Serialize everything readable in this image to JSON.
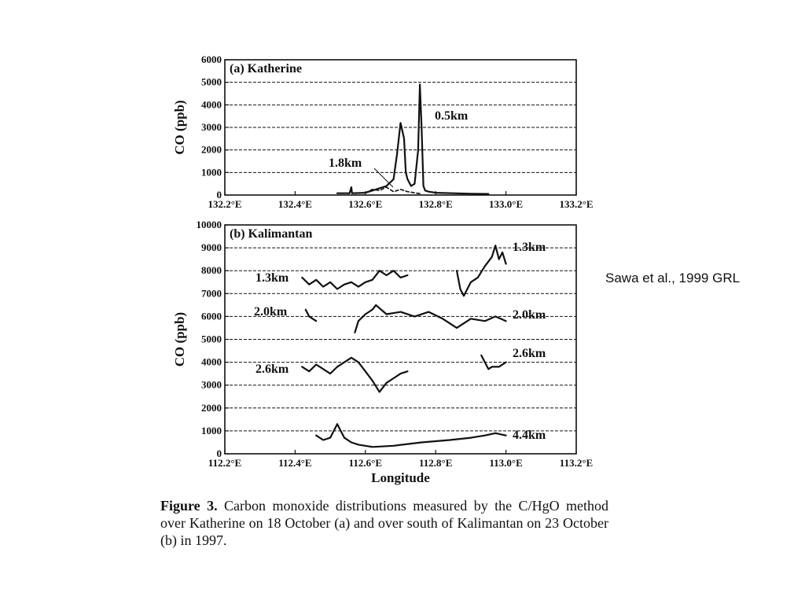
{
  "citation": "Sawa et al., 1999 GRL",
  "caption": {
    "lead": "Figure 3.",
    "text": "Carbon monoxide distributions measured by the C/HgO method over Katherine on 18 October (a) and over south of Kalimantan on 23 October (b) in 1997."
  },
  "colors": {
    "ink": "#111111",
    "background": "#ffffff"
  },
  "chart_data": [
    {
      "type": "line",
      "title": "(a) Katherine",
      "ylabel": "CO (ppb)",
      "xlabel": "",
      "xlim": [
        132.2,
        133.2
      ],
      "ylim": [
        0,
        6000
      ],
      "yticks": [
        "0",
        "1000",
        "2000",
        "3000",
        "4000",
        "5000",
        "6000"
      ],
      "xticks": [
        "132.2°E",
        "132.4°E",
        "132.6°E",
        "132.8°E",
        "133.0°E",
        "133.2°E"
      ],
      "grid": "horizontal dashed",
      "series": [
        {
          "name": "0.5km",
          "style": "solid",
          "x": [
            132.52,
            132.555,
            132.56,
            132.562,
            132.6,
            132.62,
            132.64,
            132.66,
            132.68,
            132.69,
            132.7,
            132.71,
            132.715,
            132.72,
            132.73,
            132.74,
            132.75,
            132.755,
            132.76,
            132.765,
            132.77,
            132.78,
            132.8,
            132.85,
            132.9,
            132.95
          ],
          "y": [
            80,
            80,
            350,
            80,
            100,
            200,
            300,
            400,
            700,
            1800,
            3200,
            2500,
            1000,
            700,
            400,
            500,
            2000,
            4900,
            3000,
            400,
            200,
            150,
            100,
            80,
            60,
            50
          ]
        },
        {
          "name": "1.8km",
          "style": "dashed",
          "x": [
            132.6,
            132.62,
            132.64,
            132.66,
            132.68,
            132.7,
            132.72,
            132.74,
            132.76
          ],
          "y": [
            100,
            250,
            200,
            350,
            150,
            250,
            150,
            100,
            50
          ]
        }
      ]
    },
    {
      "type": "line",
      "title": "(b) Kalimantan",
      "ylabel": "CO (ppb)",
      "xlabel": "Longitude",
      "xlim": [
        112.2,
        113.2
      ],
      "ylim": [
        0,
        10000
      ],
      "yticks": [
        "0",
        "1000",
        "2000",
        "3000",
        "4000",
        "5000",
        "6000",
        "7000",
        "8000",
        "9000",
        "10000"
      ],
      "xticks": [
        "112.2°E",
        "112.4°E",
        "112.6°E",
        "112.8°E",
        "113.0°E",
        "113.2°E"
      ],
      "grid": "horizontal dashed",
      "labels_left": [
        "1.3km",
        "2.0km",
        "2.6km"
      ],
      "labels_right": [
        "1.3km",
        "2.0km",
        "2.6km",
        "4.4km"
      ],
      "series": [
        {
          "name": "1.3km",
          "segments": [
            {
              "x": [
                112.42,
                112.44,
                112.46,
                112.48,
                112.5,
                112.52,
                112.54,
                112.56,
                112.58,
                112.6,
                112.62,
                112.64,
                112.66,
                112.68,
                112.7,
                112.72
              ],
              "y": [
                7700,
                7400,
                7600,
                7300,
                7500,
                7200,
                7400,
                7500,
                7300,
                7500,
                7600,
                8000,
                7800,
                8000,
                7700,
                7800
              ]
            },
            {
              "x": [
                112.86,
                112.87,
                112.88,
                112.9,
                112.92,
                112.94,
                112.96,
                112.97,
                112.98,
                112.99,
                113.0
              ],
              "y": [
                8000,
                7200,
                6900,
                7500,
                7700,
                8200,
                8600,
                9100,
                8500,
                8800,
                8300
              ]
            }
          ]
        },
        {
          "name": "2.0km",
          "segments": [
            {
              "x": [
                112.43,
                112.44,
                112.46
              ],
              "y": [
                6300,
                6000,
                5800
              ]
            },
            {
              "x": [
                112.57,
                112.58,
                112.6,
                112.62,
                112.63,
                112.66,
                112.7,
                112.74,
                112.78,
                112.82,
                112.86,
                112.9,
                112.94,
                112.97,
                113.0
              ],
              "y": [
                5300,
                5800,
                6100,
                6300,
                6500,
                6100,
                6200,
                6000,
                6200,
                5900,
                5500,
                5900,
                5800,
                6000,
                5800
              ]
            }
          ]
        },
        {
          "name": "2.6km",
          "segments": [
            {
              "x": [
                112.42,
                112.44,
                112.46,
                112.48,
                112.5,
                112.52,
                112.54,
                112.56,
                112.58,
                112.6,
                112.62,
                112.64,
                112.66,
                112.68,
                112.7,
                112.72
              ],
              "y": [
                3800,
                3600,
                3900,
                3700,
                3500,
                3800,
                4000,
                4200,
                4000,
                3600,
                3200,
                2700,
                3100,
                3300,
                3500,
                3600
              ]
            },
            {
              "x": [
                112.93,
                112.94,
                112.95,
                112.96,
                112.98,
                113.0
              ],
              "y": [
                4300,
                4000,
                3700,
                3800,
                3800,
                4000
              ]
            }
          ]
        },
        {
          "name": "4.4km",
          "segments": [
            {
              "x": [
                112.46,
                112.48,
                112.5,
                112.52,
                112.54,
                112.56,
                112.58,
                112.62,
                112.68,
                112.76,
                112.84,
                112.9,
                112.94,
                112.97,
                113.0
              ],
              "y": [
                800,
                600,
                700,
                1300,
                700,
                500,
                400,
                300,
                350,
                500,
                600,
                700,
                800,
                900,
                800
              ]
            }
          ]
        }
      ]
    }
  ]
}
